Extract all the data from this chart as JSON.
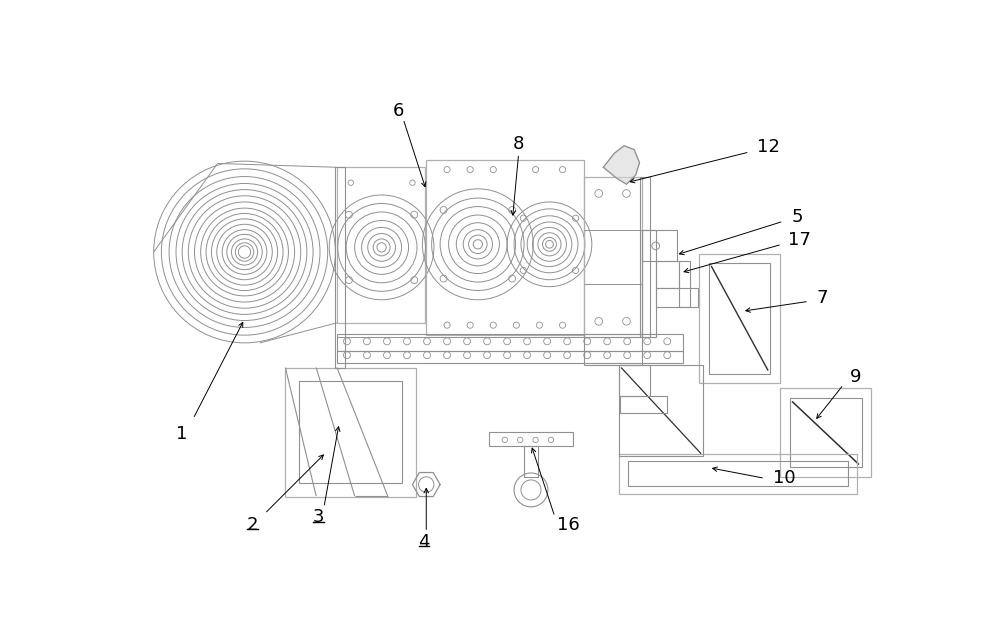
{
  "bg_color": "#ffffff",
  "lc": "#909090",
  "lc2": "#b0b0b0",
  "dc": "#303030",
  "mc": "#c8c8c8",
  "figsize": [
    10.0,
    6.37
  ],
  "dpi": 100
}
